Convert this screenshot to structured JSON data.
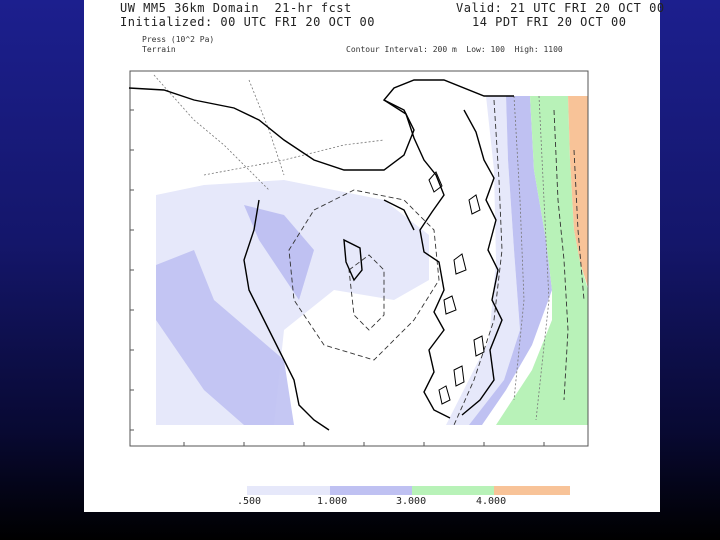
{
  "header": {
    "left_line1": "UW MM5 36km Domain  21-hr fcst",
    "left_line2": "Initialized: 00 UTC FRI 20 OCT 00",
    "left_line3": "Press (10^2 Pa)",
    "left_line4": "Terrain",
    "right_line1": "Valid: 21 UTC FRI 20 OCT 00",
    "right_line2": "14 PDT FRI 20 OCT 00",
    "right_line3": "Contour Interval: 200 m  Low: 100  High: 1100"
  },
  "legend": {
    "colors": [
      "#e6e8fa",
      "#bfc1f2",
      "#b8f2b8",
      "#f8c398"
    ],
    "labels": [
      ".500",
      "1.000",
      "3.000",
      "4.000"
    ]
  }
}
